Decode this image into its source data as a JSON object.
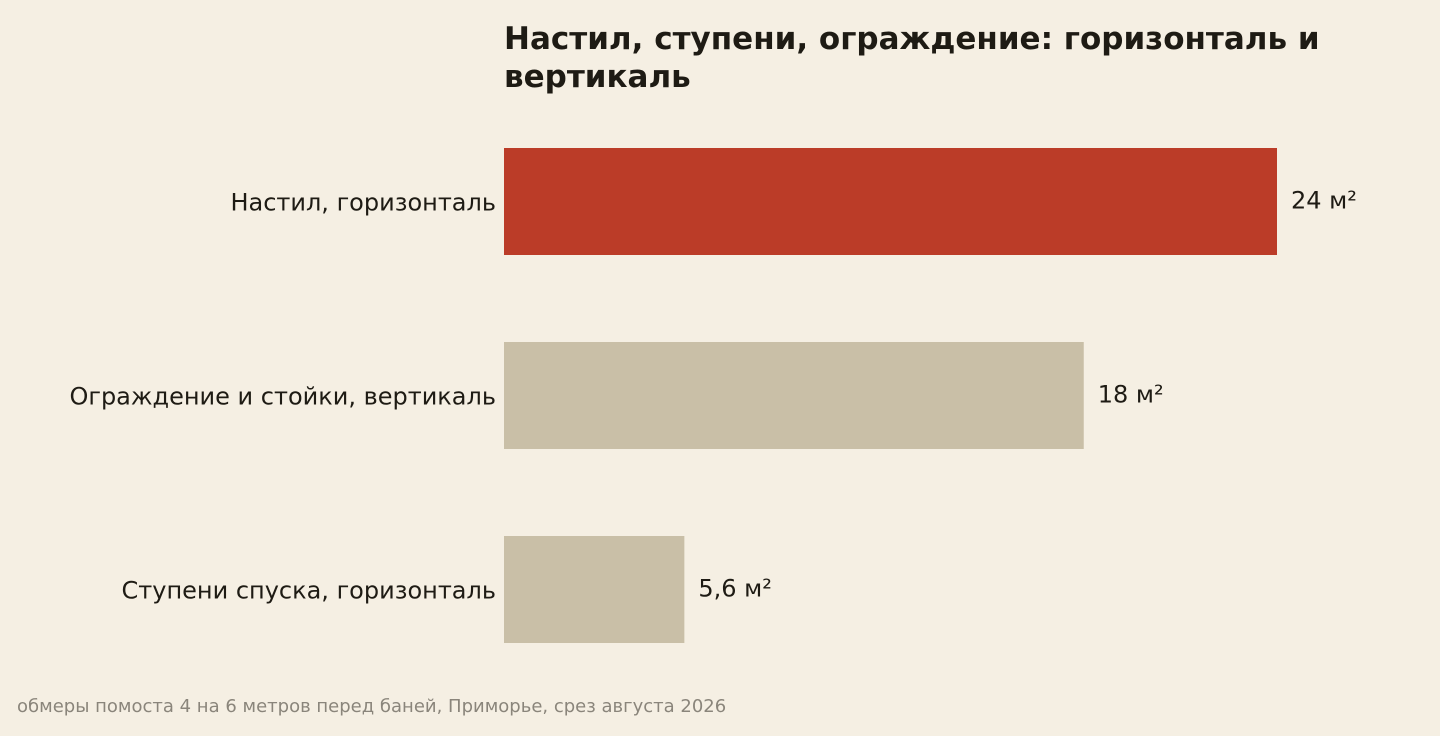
{
  "chart_data": {
    "type": "bar",
    "orientation": "horizontal",
    "title": "Настил, ступени, ограждение: горизонталь и вертикаль",
    "categories": [
      "Настил, горизонталь",
      "Ограждение и стойки, вертикаль",
      "Ступени спуска, горизонталь"
    ],
    "values": [
      24,
      18,
      5.6
    ],
    "value_labels": [
      "24 м²",
      "18 м²",
      "5,6 м²"
    ],
    "unit": "м²",
    "highlight_index": 0,
    "colors": {
      "highlight": "#bb3c28",
      "default": "#c9bfa7",
      "background": "#f5efe3",
      "text": "#1e1b14",
      "note": "#8a857b"
    },
    "xlim": [
      0,
      24
    ],
    "grid": false,
    "legend": "none"
  },
  "source_note": "обмеры помоста 4 на 6 метров перед баней, Приморье, срез августа 2026"
}
